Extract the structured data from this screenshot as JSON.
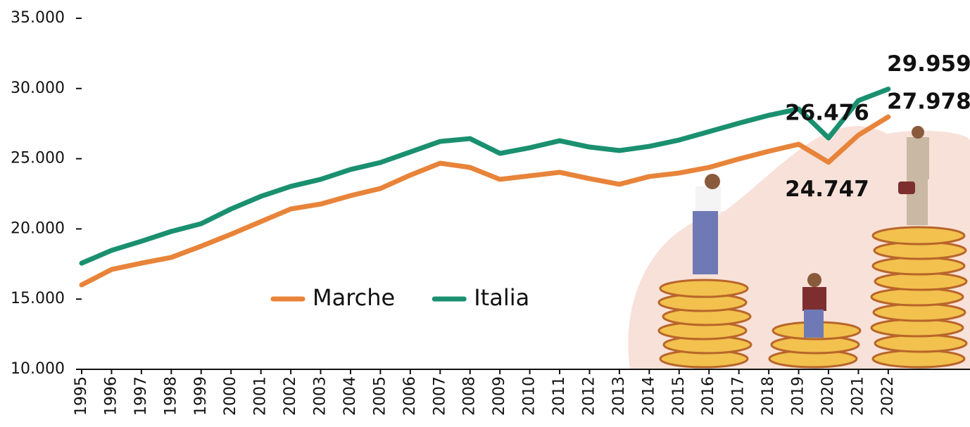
{
  "chart_data": {
    "type": "line",
    "categories": [
      "1995",
      "1996",
      "1997",
      "1998",
      "1999",
      "2000",
      "2001",
      "2002",
      "2003",
      "2004",
      "2005",
      "2006",
      "2007",
      "2008",
      "2009",
      "2010",
      "2011",
      "2012",
      "2013",
      "2014",
      "2015",
      "2016",
      "2017",
      "2018",
      "2019",
      "2020",
      "2021",
      "2022"
    ],
    "series": [
      {
        "name": "Marche",
        "color": "#e8843a",
        "values": [
          16010,
          17110,
          17560,
          17970,
          18770,
          19620,
          20520,
          21420,
          21770,
          22370,
          22880,
          23830,
          24680,
          24380,
          23530,
          23780,
          24030,
          23580,
          23180,
          23730,
          23980,
          24380,
          24980,
          25530,
          26030,
          24747,
          26680,
          27978
        ],
        "value_labels": [
          null,
          null,
          null,
          null,
          null,
          null,
          null,
          null,
          null,
          null,
          null,
          null,
          null,
          null,
          null,
          null,
          null,
          null,
          null,
          null,
          null,
          null,
          null,
          null,
          null,
          "24.747",
          null,
          "27.978"
        ]
      },
      {
        "name": "Italia",
        "color": "#1a9070",
        "values": [
          17560,
          18470,
          19120,
          19820,
          20370,
          21420,
          22320,
          23030,
          23530,
          24230,
          24730,
          25480,
          26230,
          26430,
          25380,
          25780,
          26280,
          25830,
          25580,
          25880,
          26330,
          26930,
          27530,
          28090,
          28540,
          26476,
          29140,
          29959
        ],
        "value_labels": [
          null,
          null,
          null,
          null,
          null,
          null,
          null,
          null,
          null,
          null,
          null,
          null,
          null,
          null,
          null,
          null,
          null,
          null,
          null,
          null,
          null,
          null,
          null,
          null,
          null,
          "26.476",
          null,
          "29.959"
        ]
      }
    ],
    "ylim": [
      10000,
      35000
    ],
    "yticks": [
      {
        "value": 10000,
        "label": "10.000"
      },
      {
        "value": 15000,
        "label": "15.000"
      },
      {
        "value": 20000,
        "label": "20.000"
      },
      {
        "value": 25000,
        "label": "25.000"
      },
      {
        "value": 30000,
        "label": "30.000"
      },
      {
        "value": 35000,
        "label": "35.000"
      }
    ],
    "grid": false
  }
}
